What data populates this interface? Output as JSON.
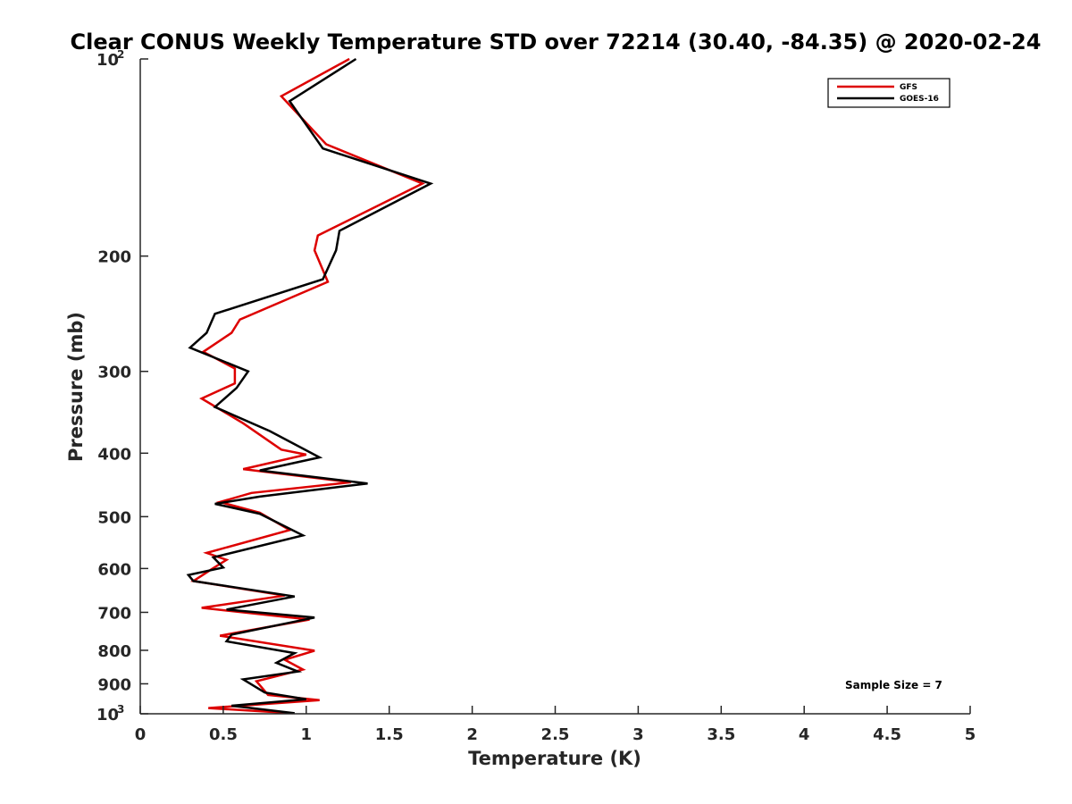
{
  "chart_data": {
    "type": "line",
    "title": "Clear CONUS Weekly Temperature STD over 72214 (30.40, -84.35) @ 2020-02-24",
    "xlabel": "Temperature (K)",
    "ylabel": "Pressure (mb)",
    "xlim": [
      0,
      5
    ],
    "ylim": [
      100,
      1000
    ],
    "y_scale": "log",
    "y_reversed": true,
    "grid": false,
    "legend_position": "top-right",
    "x_ticks": [
      {
        "value": 0,
        "label": "0"
      },
      {
        "value": 0.5,
        "label": "0.5"
      },
      {
        "value": 1,
        "label": "1"
      },
      {
        "value": 1.5,
        "label": "1.5"
      },
      {
        "value": 2,
        "label": "2"
      },
      {
        "value": 2.5,
        "label": "2.5"
      },
      {
        "value": 3,
        "label": "3"
      },
      {
        "value": 3.5,
        "label": "3.5"
      },
      {
        "value": 4,
        "label": "4"
      },
      {
        "value": 4.5,
        "label": "4.5"
      },
      {
        "value": 5,
        "label": "5"
      }
    ],
    "y_ticks": [
      {
        "value": 100,
        "base": "10",
        "exp": "2"
      },
      {
        "value": 200,
        "label": "200"
      },
      {
        "value": 300,
        "label": "300"
      },
      {
        "value": 400,
        "label": "400"
      },
      {
        "value": 500,
        "label": "500"
      },
      {
        "value": 600,
        "label": "600"
      },
      {
        "value": 700,
        "label": "700"
      },
      {
        "value": 800,
        "label": "800"
      },
      {
        "value": 900,
        "label": "900"
      },
      {
        "value": 1000,
        "base": "10",
        "exp": "3"
      }
    ],
    "series": [
      {
        "name": "GFS",
        "color": "#dd0000",
        "points": [
          [
            1.26,
            100
          ],
          [
            0.85,
            114
          ],
          [
            1.12,
            135
          ],
          [
            1.7,
            155
          ],
          [
            1.07,
            186
          ],
          [
            1.05,
            196
          ],
          [
            1.13,
            219
          ],
          [
            0.6,
            250
          ],
          [
            0.55,
            262
          ],
          [
            0.38,
            280
          ],
          [
            0.57,
            297
          ],
          [
            0.57,
            313
          ],
          [
            0.37,
            330
          ],
          [
            0.62,
            360
          ],
          [
            0.85,
            395
          ],
          [
            1.0,
            402
          ],
          [
            0.62,
            423
          ],
          [
            1.27,
            443
          ],
          [
            0.67,
            460
          ],
          [
            0.48,
            475
          ],
          [
            0.72,
            493
          ],
          [
            0.9,
            524
          ],
          [
            0.4,
            568
          ],
          [
            0.52,
            582
          ],
          [
            0.44,
            599
          ],
          [
            0.32,
            627
          ],
          [
            0.87,
            660
          ],
          [
            0.37,
            689
          ],
          [
            1.02,
            718
          ],
          [
            0.48,
            760
          ],
          [
            1.05,
            801
          ],
          [
            0.87,
            827
          ],
          [
            0.98,
            856
          ],
          [
            0.7,
            892
          ],
          [
            0.77,
            936
          ],
          [
            1.08,
            953
          ],
          [
            0.41,
            980
          ],
          [
            0.92,
            998
          ]
        ]
      },
      {
        "name": "GOES-16",
        "color": "#000000",
        "points": [
          [
            1.3,
            100
          ],
          [
            0.9,
            116
          ],
          [
            1.1,
            137
          ],
          [
            1.75,
            155
          ],
          [
            1.2,
            183
          ],
          [
            1.18,
            196
          ],
          [
            1.1,
            217
          ],
          [
            0.45,
            245
          ],
          [
            0.4,
            262
          ],
          [
            0.3,
            276
          ],
          [
            0.65,
            300
          ],
          [
            0.58,
            318
          ],
          [
            0.45,
            340
          ],
          [
            0.78,
            370
          ],
          [
            1.08,
            406
          ],
          [
            0.72,
            425
          ],
          [
            1.37,
            445
          ],
          [
            0.72,
            466
          ],
          [
            0.45,
            478
          ],
          [
            0.72,
            495
          ],
          [
            0.98,
            534
          ],
          [
            0.44,
            577
          ],
          [
            0.5,
            598
          ],
          [
            0.29,
            614
          ],
          [
            0.32,
            627
          ],
          [
            0.93,
            662
          ],
          [
            0.52,
            693
          ],
          [
            1.05,
            713
          ],
          [
            0.55,
            757
          ],
          [
            0.52,
            775
          ],
          [
            0.93,
            808
          ],
          [
            0.82,
            836
          ],
          [
            0.95,
            862
          ],
          [
            0.62,
            886
          ],
          [
            0.75,
            928
          ],
          [
            1.0,
            950
          ],
          [
            0.55,
            972
          ],
          [
            0.93,
            998
          ]
        ]
      }
    ],
    "annotation": "Sample Size = 7"
  }
}
